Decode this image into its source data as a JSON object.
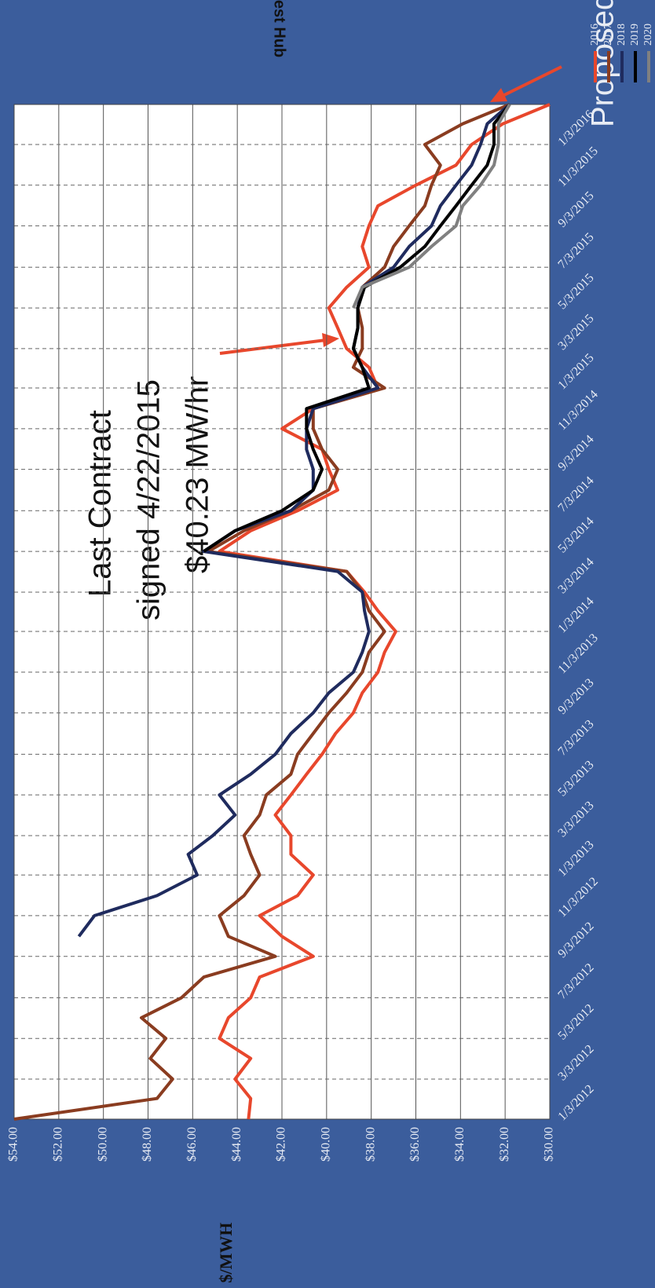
{
  "chart_data": {
    "type": "line",
    "title": "PJM West Hub",
    "y_label": "$/MWH",
    "annotations": [
      "Last Contract",
      "signed 4/22/2015",
      "$40.23 MW/hr",
      "Proposed"
    ],
    "x": [
      "1/3/2012",
      "2/3/2012",
      "3/3/2012",
      "4/3/2012",
      "5/3/2012",
      "6/3/2012",
      "7/3/2012",
      "8/3/2012",
      "9/3/2012",
      "10/3/2012",
      "11/3/2012",
      "12/3/2012",
      "1/3/2013",
      "2/3/2013",
      "3/3/2013",
      "4/3/2013",
      "5/3/2013",
      "6/3/2013",
      "7/3/2013",
      "8/3/2013",
      "9/3/2013",
      "10/3/2013",
      "11/3/2013",
      "12/3/2013",
      "1/3/2014",
      "2/3/2014",
      "3/3/2014",
      "4/3/2014",
      "5/3/2014",
      "6/3/2014",
      "7/3/2014",
      "8/3/2014",
      "9/3/2014",
      "10/3/2014",
      "11/3/2014",
      "12/3/2014",
      "1/3/2015",
      "2/3/2015",
      "3/3/2015",
      "4/3/2015",
      "5/3/2015",
      "6/3/2015",
      "7/3/2015",
      "8/3/2015",
      "9/3/2015",
      "10/3/2015",
      "11/3/2015",
      "12/3/2015",
      "1/3/2016",
      "2/3/2016",
      "3/3/2016"
    ],
    "series": [
      {
        "name": "2016",
        "color": "#e8472c",
        "values": [
          43.5,
          43.4,
          44.1,
          43.4,
          44.8,
          44.4,
          43.4,
          43.0,
          40.6,
          42.0,
          43.0,
          41.3,
          40.6,
          41.6,
          41.6,
          42.3,
          41.6,
          40.9,
          40.2,
          39.6,
          38.8,
          38.4,
          37.7,
          37.4,
          36.9,
          37.7,
          38.3,
          39.1,
          44.8,
          43.4,
          41.3,
          39.5,
          39.9,
          40.2,
          42.0,
          40.6,
          37.7,
          38.1,
          39.1,
          39.5,
          39.9,
          39.1,
          38.1,
          38.4,
          38.1,
          37.7,
          36.0,
          34.2,
          33.5,
          32.1,
          30.0
        ]
      },
      {
        "name": "2017",
        "color": "#8a3c20",
        "values": [
          54.0,
          47.6,
          46.9,
          47.9,
          47.2,
          48.3,
          46.5,
          45.5,
          42.3,
          44.4,
          44.8,
          43.7,
          43.0,
          43.4,
          43.7,
          43.0,
          42.7,
          41.6,
          41.3,
          40.6,
          39.9,
          39.1,
          38.4,
          38.1,
          37.4,
          38.1,
          38.4,
          39.1,
          45.3,
          43.7,
          41.6,
          39.9,
          39.5,
          40.2,
          40.6,
          40.6,
          37.4,
          38.8,
          38.4,
          38.4,
          38.6,
          38.4,
          37.4,
          37.0,
          36.3,
          35.6,
          35.3,
          34.9,
          35.6,
          33.9,
          31.8
        ]
      },
      {
        "name": "2018",
        "color": "#1f2b5e",
        "values": [
          null,
          null,
          null,
          null,
          null,
          null,
          null,
          null,
          null,
          51.1,
          50.4,
          47.6,
          45.8,
          46.2,
          45.1,
          44.1,
          44.8,
          43.4,
          42.3,
          41.6,
          40.6,
          39.9,
          38.8,
          38.4,
          38.1,
          38.3,
          38.4,
          39.5,
          45.5,
          44.1,
          41.6,
          40.6,
          40.6,
          40.9,
          40.9,
          40.6,
          37.7,
          38.4,
          38.8,
          38.6,
          38.6,
          38.4,
          37.0,
          36.3,
          35.3,
          34.9,
          34.2,
          33.5,
          33.1,
          32.8,
          31.8
        ]
      },
      {
        "name": "2019",
        "color": "#000000",
        "values": [
          null,
          null,
          null,
          null,
          null,
          null,
          null,
          null,
          null,
          null,
          null,
          null,
          null,
          null,
          null,
          null,
          null,
          null,
          null,
          null,
          null,
          null,
          null,
          null,
          null,
          null,
          null,
          null,
          45.5,
          44.1,
          42.0,
          40.6,
          40.2,
          40.6,
          40.9,
          40.9,
          38.1,
          38.4,
          38.8,
          38.6,
          38.6,
          38.3,
          36.7,
          35.6,
          34.9,
          34.2,
          33.5,
          32.8,
          32.5,
          32.5,
          31.8
        ]
      },
      {
        "name": "2020",
        "color": "#808080",
        "values": [
          null,
          null,
          null,
          null,
          null,
          null,
          null,
          null,
          null,
          null,
          null,
          null,
          null,
          null,
          null,
          null,
          null,
          null,
          null,
          null,
          null,
          null,
          null,
          null,
          null,
          null,
          null,
          null,
          null,
          null,
          null,
          null,
          null,
          null,
          null,
          null,
          null,
          null,
          null,
          null,
          38.8,
          38.4,
          36.3,
          35.3,
          34.2,
          33.9,
          33.1,
          32.5,
          32.3,
          32.3,
          31.8
        ]
      }
    ],
    "xlim": [
      "1/3/2012",
      "3/3/2016"
    ],
    "xticks": [
      "1/3/2012",
      "3/3/2012",
      "5/3/2012",
      "7/3/2012",
      "9/3/2012",
      "11/3/2012",
      "1/3/2013",
      "3/3/2013",
      "5/3/2013",
      "7/3/2013",
      "9/3/2013",
      "11/3/2013",
      "1/3/2014",
      "3/3/2014",
      "5/3/2014",
      "7/3/2014",
      "9/3/2014",
      "11/3/2014",
      "1/3/2015",
      "3/3/2015",
      "5/3/2015",
      "7/3/2015",
      "9/3/2015",
      "11/3/2015",
      "1/3/2016"
    ],
    "ylim": [
      30,
      54
    ],
    "yticks": [
      {
        "value": 30,
        "label": "$30.00"
      },
      {
        "value": 32,
        "label": "$32.00"
      },
      {
        "value": 34,
        "label": "$34.00"
      },
      {
        "value": 36,
        "label": "$36.00"
      },
      {
        "value": 38,
        "label": "$38.00"
      },
      {
        "value": 40,
        "label": "$40.00"
      },
      {
        "value": 42,
        "label": "$42.00"
      },
      {
        "value": 44,
        "label": "$44.00"
      },
      {
        "value": 46,
        "label": "$46.00"
      },
      {
        "value": 48,
        "label": "$48.00"
      },
      {
        "value": 50,
        "label": "$50.00"
      },
      {
        "value": 52,
        "label": "$52.00"
      },
      {
        "value": 54,
        "label": "$54.00"
      }
    ],
    "grid": true,
    "legend": "right"
  }
}
